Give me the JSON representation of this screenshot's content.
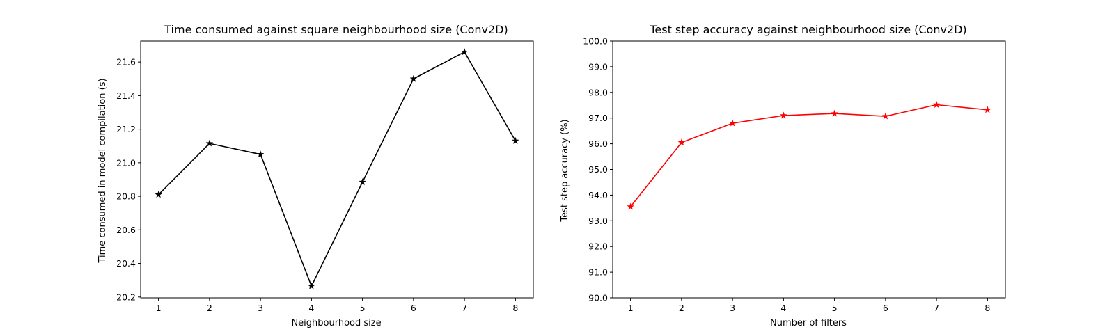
{
  "chart_data": [
    {
      "type": "line",
      "title": "Time consumed against square neighbourhood size (Conv2D)",
      "xlabel": "Neighbourhood size",
      "ylabel": "Time consumed in model compilation (s)",
      "x": [
        1,
        2,
        3,
        4,
        5,
        6,
        7,
        8
      ],
      "xticks": [
        "1",
        "2",
        "3",
        "4",
        "5",
        "6",
        "7",
        "8"
      ],
      "yticks": [
        "20.2",
        "20.4",
        "20.6",
        "20.8",
        "21.0",
        "21.2",
        "21.4",
        "21.6"
      ],
      "xlim": [
        0.65,
        8.35
      ],
      "ylim": [
        20.195,
        21.725
      ],
      "grid": false,
      "series": [
        {
          "values": [
            20.81,
            21.115,
            21.05,
            20.265,
            20.885,
            21.5,
            21.66,
            21.13
          ],
          "color": "#000000",
          "marker": "star"
        }
      ]
    },
    {
      "type": "line",
      "title": "Test step accuracy against neighbourhood size (Conv2D)",
      "xlabel": "Number of filters",
      "ylabel": "Test step accuracy (%)",
      "x": [
        1,
        2,
        3,
        4,
        5,
        6,
        7,
        8
      ],
      "xticks": [
        "1",
        "2",
        "3",
        "4",
        "5",
        "6",
        "7",
        "8"
      ],
      "yticks": [
        "90.0",
        "91.0",
        "92.0",
        "93.0",
        "94.0",
        "95.0",
        "96.0",
        "97.0",
        "98.0",
        "99.0",
        "100.0"
      ],
      "xlim": [
        0.65,
        8.35
      ],
      "ylim": [
        90,
        100
      ],
      "grid": false,
      "series": [
        {
          "values": [
            93.55,
            96.05,
            96.8,
            97.1,
            97.18,
            97.07,
            97.52,
            97.32
          ],
          "color": "#ff0000",
          "marker": "star"
        }
      ]
    }
  ]
}
